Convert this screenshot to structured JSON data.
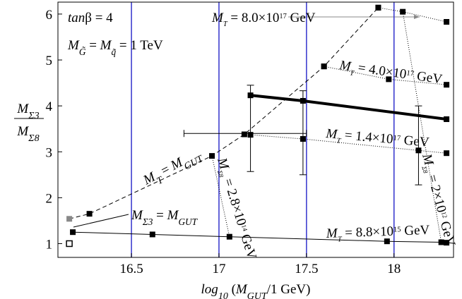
{
  "chart_data": {
    "type": "line",
    "xlabel": [
      {
        "t": "log",
        "s": "i"
      },
      {
        "t": "10",
        "s": "sub"
      },
      {
        "t": " (",
        "s": "n"
      },
      {
        "t": "M",
        "s": "i"
      },
      {
        "t": "GUT",
        "s": "sub"
      },
      {
        "t": "/1 GeV)",
        "s": "n"
      }
    ],
    "ylabel_num": [
      {
        "t": "M",
        "s": "i"
      },
      {
        "t": "Σ3",
        "s": "sub"
      }
    ],
    "ylabel_den": [
      {
        "t": "M",
        "s": "i"
      },
      {
        "t": "Σ8",
        "s": "sub"
      }
    ],
    "xlim": [
      16.08,
      18.34
    ],
    "ylim": [
      0.7,
      6.26
    ],
    "xticks": [
      16.5,
      17,
      17.5,
      18
    ],
    "yticks": [
      1,
      2,
      3,
      4,
      5,
      6
    ],
    "grid_x": true,
    "grid_color": "#3333cc",
    "series": [
      {
        "x": [
          16.145,
          16.26,
          16.96,
          17.145,
          17.6,
          17.91
        ],
        "y": [
          1.54,
          1.65,
          2.91,
          3.38,
          4.86,
          6.14
        ],
        "color": "#000000",
        "width": 1,
        "dash": "6,4",
        "point_colors": [
          "#888888",
          "#000000",
          "#000000",
          "#000000",
          "#000000",
          "#000000"
        ]
      },
      {
        "x": [
          16.165,
          16.62,
          17.06,
          17.96,
          18.27,
          18.3
        ],
        "y": [
          1.25,
          1.2,
          1.15,
          1.05,
          1.03,
          1.02
        ],
        "color": "#000000",
        "width": 1,
        "dash": "none"
      },
      {
        "x": [
          17.91,
          18.05,
          18.3
        ],
        "y": [
          6.14,
          6.05,
          5.83
        ],
        "color": "#000000",
        "width": 1,
        "dash": "1,2"
      },
      {
        "x": [
          17.6,
          17.97,
          18.3
        ],
        "y": [
          4.86,
          4.58,
          4.46
        ],
        "color": "#000000",
        "width": 1,
        "dash": "1,2"
      },
      {
        "x": [
          17.18,
          17.48,
          18.14,
          18.3
        ],
        "y": [
          3.37,
          3.28,
          3.03,
          2.97
        ],
        "color": "#000000",
        "width": 1,
        "dash": "1,2"
      },
      {
        "x": [
          17.18,
          17.48,
          18.3
        ],
        "y": [
          4.23,
          4.11,
          3.71
        ],
        "color": "#000000",
        "width": 4,
        "dash": "none"
      },
      {
        "x": [
          16.96,
          17.06
        ],
        "y": [
          2.91,
          1.15
        ],
        "color": "#000000",
        "width": 1,
        "dash": "1,2"
      },
      {
        "x": [
          18.05,
          18.27
        ],
        "y": [
          6.05,
          1.03
        ],
        "color": "#000000",
        "width": 1,
        "dash": "1,2"
      },
      {
        "x": [
          16.145
        ],
        "y": [
          1.0
        ],
        "color": "#000000",
        "width": 1,
        "dash": "none",
        "open": true
      }
    ],
    "yerrors": [
      {
        "x": 17.18,
        "low": 2.57,
        "high": 4.45
      },
      {
        "x": 17.48,
        "low": 2.5,
        "high": 4.33
      },
      {
        "x": 18.14,
        "low": 2.28,
        "high": 4.0
      }
    ],
    "xerrors": [
      {
        "y": 3.4,
        "low": 16.8,
        "high": 17.5
      }
    ],
    "annotations": [
      {
        "parts": [
          {
            "t": "tan",
            "s": "i"
          },
          {
            "t": "β = 4",
            "s": "n"
          }
        ]
      },
      {
        "parts": [
          {
            "t": "M",
            "s": "i"
          },
          {
            "t": "G̃",
            "s": "sub"
          },
          {
            "t": " = ",
            "s": "n"
          },
          {
            "t": "M",
            "s": "i"
          },
          {
            "t": "q̃",
            "s": "sub"
          },
          {
            "t": " = 1 TeV",
            "s": "n"
          }
        ]
      },
      {
        "parts": [
          {
            "t": "M",
            "s": "i"
          },
          {
            "t": "T",
            "s": "sub"
          },
          {
            "t": " = 8.0×10",
            "s": "n"
          },
          {
            "t": "17",
            "s": "sup"
          },
          {
            "t": " GeV",
            "s": "n"
          }
        ]
      },
      {
        "parts": [
          {
            "t": "M",
            "s": "i"
          },
          {
            "t": "T",
            "s": "sub"
          },
          {
            "t": " = 4.0×10",
            "s": "n"
          },
          {
            "t": "17",
            "s": "sup"
          },
          {
            "t": " GeV",
            "s": "n"
          }
        ]
      },
      {
        "parts": [
          {
            "t": "M",
            "s": "i"
          },
          {
            "t": "T",
            "s": "sub"
          },
          {
            "t": " = 1.4×10",
            "s": "n"
          },
          {
            "t": "17",
            "s": "sup"
          },
          {
            "t": " GeV",
            "s": "n"
          }
        ]
      },
      {
        "parts": [
          {
            "t": "M",
            "s": "i"
          },
          {
            "t": "T",
            "s": "sub"
          },
          {
            "t": " = ",
            "s": "n"
          },
          {
            "t": "M",
            "s": "i"
          },
          {
            "t": "GUT",
            "s": "sub"
          }
        ]
      },
      {
        "parts": [
          {
            "t": "M",
            "s": "i"
          },
          {
            "t": "Σ3",
            "s": "sub"
          },
          {
            "t": " = ",
            "s": "n"
          },
          {
            "t": "M",
            "s": "i"
          },
          {
            "t": "GUT",
            "s": "sub"
          }
        ]
      },
      {
        "parts": [
          {
            "t": "M",
            "s": "i"
          },
          {
            "t": "T",
            "s": "sub"
          },
          {
            "t": " = 8.8×10",
            "s": "n"
          },
          {
            "t": "15",
            "s": "sup"
          },
          {
            "t": " GeV",
            "s": "n"
          }
        ]
      },
      {
        "parts": [
          {
            "t": "M",
            "s": "i"
          },
          {
            "t": "Σ8",
            "s": "sub"
          },
          {
            "t": " = 2.8×10",
            "s": "n"
          },
          {
            "t": "14",
            "s": "sup"
          },
          {
            "t": " GeV",
            "s": "n"
          }
        ]
      },
      {
        "parts": [
          {
            "t": "M",
            "s": "i"
          },
          {
            "t": "Σ8",
            "s": "sub"
          },
          {
            "t": " = 2×10",
            "s": "n"
          },
          {
            "t": "12",
            "s": "sup"
          },
          {
            "t": " GeV",
            "s": "n"
          }
        ]
      }
    ]
  }
}
